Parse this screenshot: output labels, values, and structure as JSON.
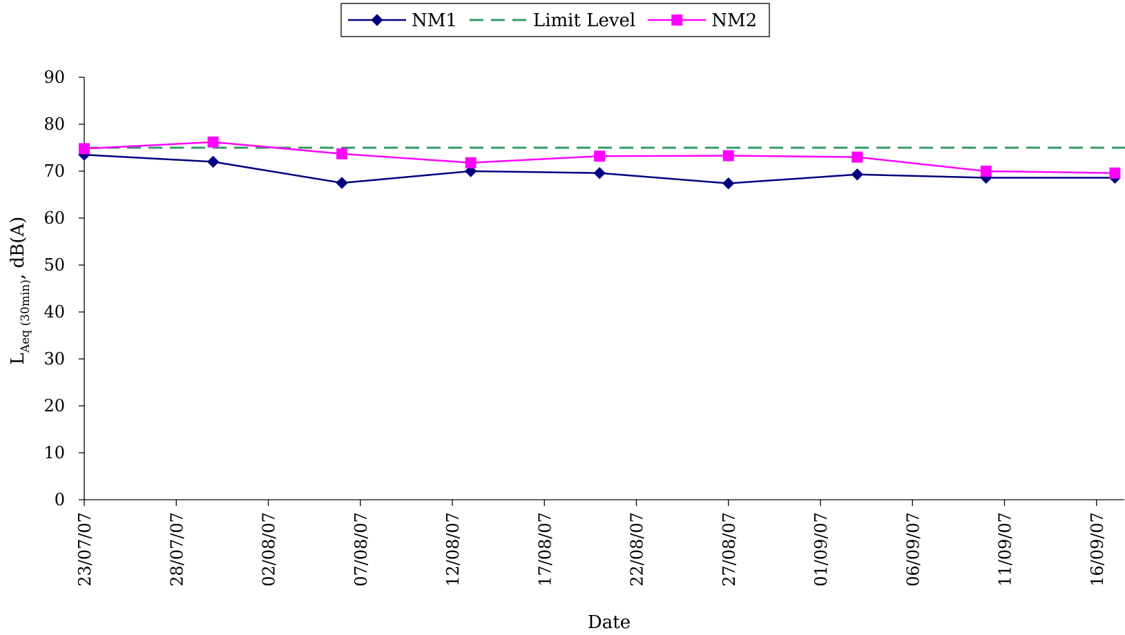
{
  "chart_data": {
    "type": "line",
    "xlabel": "Date",
    "ylabel": "L",
    "ylabel_sub": "Aeq (30min)",
    "ylabel_suffix": ", dB(A)",
    "ylim": [
      0,
      90
    ],
    "yticks": [
      "0",
      "10",
      "20",
      "30",
      "40",
      "50",
      "60",
      "70",
      "80",
      "90"
    ],
    "x_start": "2007-07-23",
    "x_end": "2007-09-18",
    "xticks": [
      {
        "date": "2007-07-23",
        "label": "23/07/07"
      },
      {
        "date": "2007-07-28",
        "label": "28/07/07"
      },
      {
        "date": "2007-08-02",
        "label": "02/08/07"
      },
      {
        "date": "2007-08-07",
        "label": "07/08/07"
      },
      {
        "date": "2007-08-12",
        "label": "12/08/07"
      },
      {
        "date": "2007-08-17",
        "label": "17/08/07"
      },
      {
        "date": "2007-08-22",
        "label": "22/08/07"
      },
      {
        "date": "2007-08-27",
        "label": "27/08/07"
      },
      {
        "date": "2007-09-01",
        "label": "01/09/07"
      },
      {
        "date": "2007-09-06",
        "label": "06/09/07"
      },
      {
        "date": "2007-09-11",
        "label": "11/09/07"
      },
      {
        "date": "2007-09-16",
        "label": "16/09/07"
      }
    ],
    "grid": false,
    "legend_position": "top-center",
    "series": [
      {
        "name": "NM1",
        "color": "#000080",
        "marker": "diamond",
        "dash": false,
        "points": [
          {
            "x": "2007-07-23",
            "y": 73.5
          },
          {
            "x": "2007-07-30",
            "y": 72.0
          },
          {
            "x": "2007-08-06",
            "y": 67.5
          },
          {
            "x": "2007-08-13",
            "y": 70.0
          },
          {
            "x": "2007-08-20",
            "y": 69.6
          },
          {
            "x": "2007-08-27",
            "y": 67.4
          },
          {
            "x": "2007-09-03",
            "y": 69.3
          },
          {
            "x": "2007-09-10",
            "y": 68.6
          },
          {
            "x": "2007-09-17",
            "y": 68.6
          }
        ]
      },
      {
        "name": "Limit Level",
        "color": "#339966",
        "marker": "none",
        "dash": true,
        "points": [
          {
            "x": "2007-07-23",
            "y": 75
          },
          {
            "x": "2007-09-18",
            "y": 75
          }
        ]
      },
      {
        "name": "NM2",
        "color": "#ff00ff",
        "marker": "square",
        "dash": false,
        "points": [
          {
            "x": "2007-07-23",
            "y": 74.8
          },
          {
            "x": "2007-07-30",
            "y": 76.2
          },
          {
            "x": "2007-08-06",
            "y": 73.7
          },
          {
            "x": "2007-08-13",
            "y": 71.8
          },
          {
            "x": "2007-08-20",
            "y": 73.2
          },
          {
            "x": "2007-08-27",
            "y": 73.3
          },
          {
            "x": "2007-09-03",
            "y": 73.0
          },
          {
            "x": "2007-09-10",
            "y": 70.0
          },
          {
            "x": "2007-09-17",
            "y": 69.6
          }
        ]
      }
    ]
  }
}
